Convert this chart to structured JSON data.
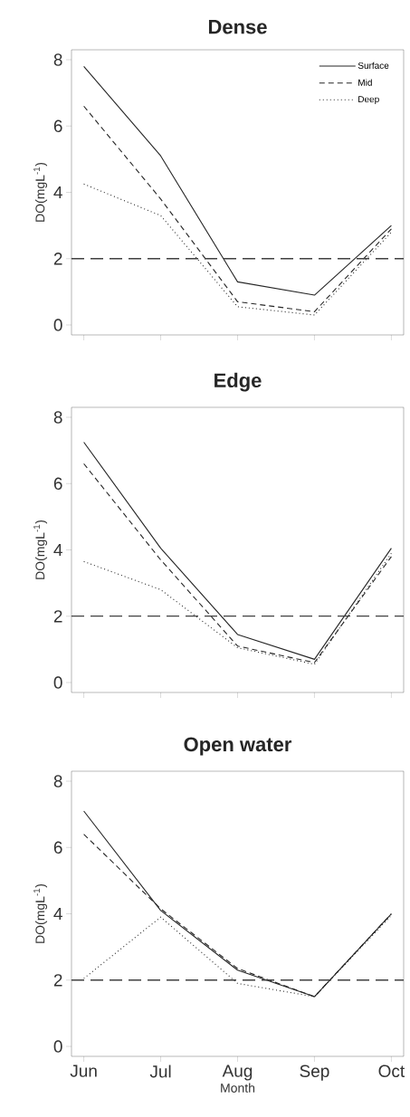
{
  "chart_data": [
    {
      "type": "line",
      "title": "Dense",
      "ylabel": "DO(mgL$^{-1}$)",
      "categories": [
        null,
        null,
        null,
        null,
        null
      ],
      "tick_labels": "y",
      "ylim": [
        -0.3,
        8.3
      ],
      "yticks": [
        0,
        2,
        4,
        6,
        8
      ],
      "legend": "top right",
      "ref_lines": [
        {
          "axis": "y",
          "value": 2,
          "line_style": "dashed"
        }
      ],
      "series": [
        {
          "name": "Surface",
          "color": "#262626",
          "line_style": "solid",
          "values": [
            7.8,
            5.1,
            1.3,
            0.9,
            3.0
          ]
        },
        {
          "name": "Mid",
          "color": "#262626",
          "line_style": "dashed",
          "values": [
            6.6,
            3.8,
            0.7,
            0.4,
            2.9
          ]
        },
        {
          "name": "Deep",
          "color": "#262626",
          "line_style": "dotted",
          "values": [
            4.25,
            3.3,
            0.55,
            0.3,
            2.8
          ]
        }
      ]
    },
    {
      "type": "line",
      "title": "Edge",
      "ylabel": "DO(mgL$^{-1}$)",
      "categories": [
        null,
        null,
        null,
        null,
        null
      ],
      "tick_labels": "y",
      "ylim": [
        -0.3,
        8.3
      ],
      "yticks": [
        0,
        2,
        4,
        6,
        8
      ],
      "ref_lines": [
        {
          "axis": "y",
          "value": 2,
          "line_style": "dashed"
        }
      ],
      "series": [
        {
          "color": "#262626",
          "line_style": "solid",
          "values": [
            7.25,
            4.05,
            1.45,
            0.7,
            4.05
          ]
        },
        {
          "color": "#262626",
          "line_style": "dashed",
          "values": [
            6.6,
            3.7,
            1.1,
            0.6,
            3.8
          ]
        },
        {
          "color": "#262626",
          "line_style": "dotted",
          "values": [
            3.65,
            2.8,
            1.05,
            0.55,
            3.9
          ]
        }
      ]
    },
    {
      "type": "line",
      "title": "Open water",
      "xlabel": "Month",
      "ylabel": "DO(mgL$^{-1}$)",
      "categories": [
        "Jun",
        "Jul",
        "Aug",
        "Sep",
        "Oct"
      ],
      "ylim": [
        -0.3,
        8.3
      ],
      "yticks": [
        0,
        2,
        4,
        6,
        8
      ],
      "ref_lines": [
        {
          "axis": "y",
          "value": 2,
          "line_style": "dashed"
        }
      ],
      "series": [
        {
          "color": "#262626",
          "line_style": "solid",
          "values": [
            7.1,
            4.1,
            2.3,
            1.5,
            4.0
          ]
        },
        {
          "color": "#262626",
          "line_style": "dashed",
          "values": [
            6.4,
            4.15,
            2.35,
            1.5,
            4.0
          ]
        },
        {
          "color": "#262626",
          "line_style": "dotted",
          "values": [
            2.05,
            3.9,
            1.9,
            1.5,
            3.95
          ]
        }
      ]
    }
  ]
}
